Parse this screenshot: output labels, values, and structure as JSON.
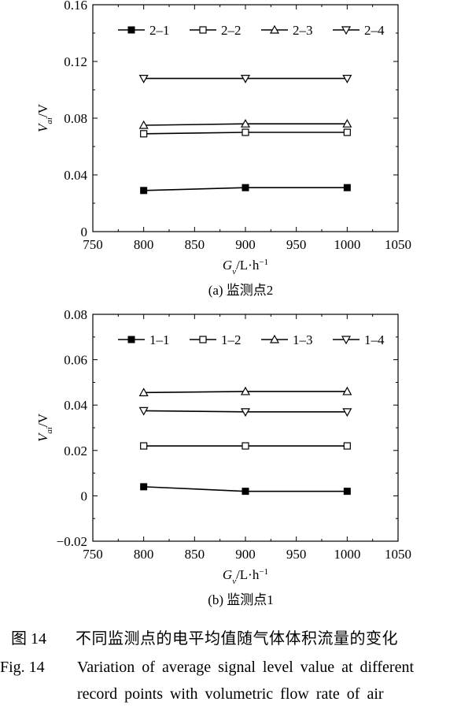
{
  "chart_data": [
    {
      "type": "line",
      "caption": "(a) 监测点2",
      "xlabel": {
        "main": "G",
        "sub": "v",
        "rest": "/L·h",
        "sup": "−1"
      },
      "ylabel": {
        "main": "V",
        "sub": "ai",
        "rest": "/V"
      },
      "xlim": [
        750,
        1050
      ],
      "ylim": [
        0,
        0.16
      ],
      "xticks": [
        750,
        800,
        850,
        900,
        950,
        1000,
        1050
      ],
      "yticks": [
        0,
        0.04,
        0.08,
        0.12,
        0.16
      ],
      "xtick_labels": [
        "750",
        "800",
        "850",
        "900",
        "950",
        "1000",
        "1050"
      ],
      "ytick_labels": [
        "0",
        "0.04",
        "0.08",
        "0.12",
        "0.16"
      ],
      "legend_position": "top",
      "x": [
        800,
        900,
        1000
      ],
      "series": [
        {
          "name": "2–1",
          "marker": "square-filled",
          "values": [
            0.029,
            0.031,
            0.031
          ]
        },
        {
          "name": "2–2",
          "marker": "square-open",
          "values": [
            0.069,
            0.07,
            0.07
          ]
        },
        {
          "name": "2–3",
          "marker": "triangle-up-open",
          "values": [
            0.075,
            0.076,
            0.076
          ]
        },
        {
          "name": "2–4",
          "marker": "triangle-down-open",
          "values": [
            0.108,
            0.108,
            0.108
          ]
        }
      ]
    },
    {
      "type": "line",
      "caption": "(b) 监测点1",
      "xlabel": {
        "main": "G",
        "sub": "v",
        "rest": "/L·h",
        "sup": "−1"
      },
      "ylabel": {
        "main": "V",
        "sub": "ai",
        "rest": "/V"
      },
      "xlim": [
        750,
        1050
      ],
      "ylim": [
        -0.02,
        0.08
      ],
      "xticks": [
        750,
        800,
        850,
        900,
        950,
        1000,
        1050
      ],
      "yticks": [
        -0.02,
        0,
        0.02,
        0.04,
        0.06,
        0.08
      ],
      "xtick_labels": [
        "750",
        "800",
        "850",
        "900",
        "950",
        "1000",
        "1050"
      ],
      "ytick_labels": [
        "−0.02",
        "0",
        "0.02",
        "0.04",
        "0.06",
        "0.08"
      ],
      "legend_position": "top",
      "x": [
        800,
        900,
        1000
      ],
      "series": [
        {
          "name": "1–1",
          "marker": "square-filled",
          "values": [
            0.004,
            0.002,
            0.002
          ]
        },
        {
          "name": "1–2",
          "marker": "square-open",
          "values": [
            0.022,
            0.022,
            0.022
          ]
        },
        {
          "name": "1–3",
          "marker": "triangle-up-open",
          "values": [
            0.0455,
            0.046,
            0.046
          ]
        },
        {
          "name": "1–4",
          "marker": "triangle-down-open",
          "values": [
            0.0375,
            0.037,
            0.037
          ]
        }
      ]
    }
  ],
  "figure_caption": {
    "zh_number": "图 14",
    "zh_text": "不同监测点的电平均值随气体体积流量的变化",
    "en_number": "Fig. 14",
    "en_line1": "Variation of average signal level value at different",
    "en_line2": "record points with volumetric flow rate of air"
  }
}
